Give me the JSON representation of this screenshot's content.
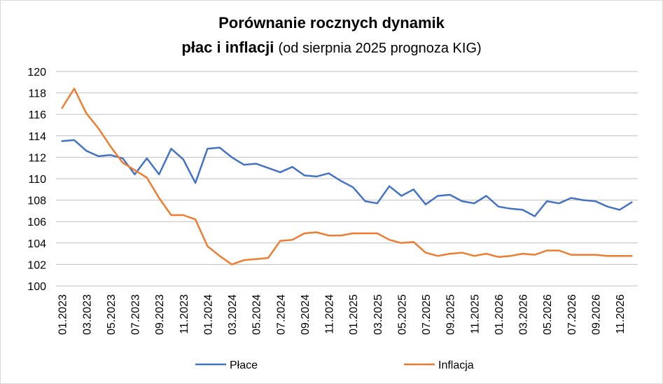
{
  "chart_data": {
    "type": "line",
    "title": "Porównanie rocznych dynamik",
    "subtitle_bold": "płac i inflacji",
    "subtitle_normal": "(od sierpnia 2025 prognoza KIG)",
    "xlabel": "",
    "ylabel": "",
    "ylim": [
      100,
      120
    ],
    "ytick_step": 2,
    "grid": true,
    "legend_position": "bottom",
    "x": [
      "01.2023",
      "02.2023",
      "03.2023",
      "04.2023",
      "05.2023",
      "06.2023",
      "07.2023",
      "08.2023",
      "09.2023",
      "10.2023",
      "11.2023",
      "12.2023",
      "01.2024",
      "02.2024",
      "03.2024",
      "04.2024",
      "05.2024",
      "06.2024",
      "07.2024",
      "08.2024",
      "09.2024",
      "10.2024",
      "11.2024",
      "12.2024",
      "01.2025",
      "02.2025",
      "03.2025",
      "04.2025",
      "05.2025",
      "06.2025",
      "07.2025",
      "08.2025",
      "09.2025",
      "10.2025",
      "11.2025",
      "12.2025",
      "01.2026",
      "02.2026",
      "03.2026",
      "04.2026",
      "05.2026",
      "06.2026",
      "07.2026",
      "08.2026",
      "09.2026",
      "10.2026",
      "11.2026",
      "12.2026"
    ],
    "x_tick_labels": [
      "01.2023",
      "03.2023",
      "05.2023",
      "07.2023",
      "09.2023",
      "11.2023",
      "01.2024",
      "03.2024",
      "05.2024",
      "07.2024",
      "09.2024",
      "11.2024",
      "01.2025",
      "03.2025",
      "05.2025",
      "07.2025",
      "09.2025",
      "11.2025",
      "01.2026",
      "03.2026",
      "05.2026",
      "07.2026",
      "09.2026",
      "11.2026"
    ],
    "series": [
      {
        "name": "Płace",
        "color": "#4472c4",
        "values": [
          113.5,
          113.6,
          112.6,
          112.1,
          112.2,
          111.9,
          110.4,
          111.9,
          110.4,
          112.8,
          111.8,
          109.6,
          112.8,
          112.9,
          112.0,
          111.3,
          111.4,
          111.0,
          110.6,
          111.1,
          110.3,
          110.2,
          110.5,
          109.8,
          109.2,
          107.9,
          107.7,
          109.3,
          108.4,
          109.0,
          107.6,
          108.4,
          108.5,
          107.9,
          107.7,
          108.4,
          107.4,
          107.2,
          107.1,
          106.5,
          107.9,
          107.7,
          108.2,
          108.0,
          107.9,
          107.4,
          107.1,
          107.8
        ]
      },
      {
        "name": "Inflacja",
        "color": "#ed7d31",
        "values": [
          116.6,
          118.4,
          116.1,
          114.7,
          113.0,
          111.5,
          110.8,
          110.1,
          108.2,
          106.6,
          106.6,
          106.2,
          103.7,
          102.8,
          102.0,
          102.4,
          102.5,
          102.6,
          104.2,
          104.3,
          104.9,
          105.0,
          104.7,
          104.7,
          104.9,
          104.9,
          104.9,
          104.3,
          104.0,
          104.1,
          103.1,
          102.8,
          103.0,
          103.1,
          102.8,
          103.0,
          102.7,
          102.8,
          103.0,
          102.9,
          103.3,
          103.3,
          102.9,
          102.9,
          102.9,
          102.8,
          102.8,
          102.8
        ]
      }
    ]
  }
}
